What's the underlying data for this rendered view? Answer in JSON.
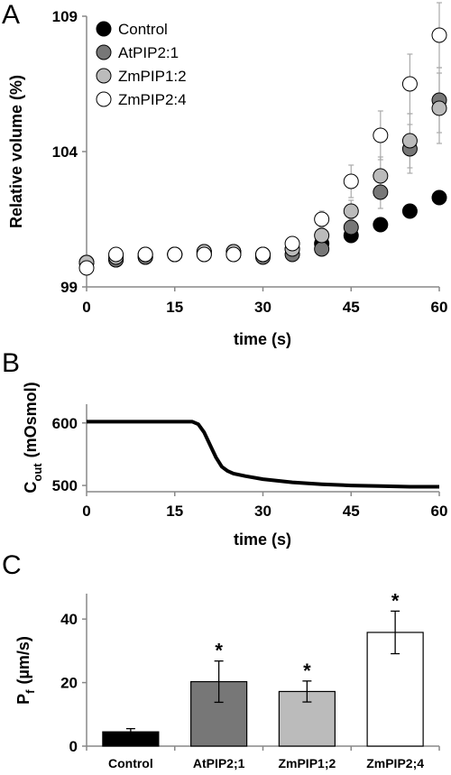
{
  "chart_data": [
    {
      "panel": "A",
      "type": "scatter",
      "xlabel": "time  (s)",
      "ylabel": "Relative volume (%)",
      "xlim": [
        0,
        60
      ],
      "ylim": [
        99,
        109
      ],
      "xticks": [
        0,
        15,
        30,
        45,
        60
      ],
      "yticks": [
        99,
        104,
        109
      ],
      "legend_position": "top-left",
      "series": [
        {
          "name": "Control",
          "color": "#000000",
          "x": [
            0,
            5,
            10,
            15,
            20,
            25,
            30,
            35,
            40,
            45,
            50,
            55,
            60
          ],
          "y": [
            99.9,
            100.0,
            100.1,
            100.2,
            100.3,
            100.3,
            100.2,
            100.4,
            100.6,
            100.9,
            101.3,
            101.8,
            102.3
          ],
          "err": [
            0,
            0,
            0,
            0,
            0,
            0,
            0,
            0,
            0,
            0,
            0.1,
            0.15,
            0.2
          ]
        },
        {
          "name": "AtPIP2:1",
          "color": "#777777",
          "x": [
            0,
            5,
            10,
            15,
            20,
            25,
            30,
            35,
            40,
            45,
            50,
            55,
            60
          ],
          "y": [
            99.9,
            100.0,
            100.1,
            100.2,
            100.2,
            100.2,
            100.1,
            100.2,
            100.4,
            101.2,
            102.5,
            104.1,
            105.9
          ],
          "err": [
            0,
            0,
            0,
            0,
            0,
            0,
            0,
            0,
            0.1,
            0.3,
            0.6,
            0.9,
            1.2
          ]
        },
        {
          "name": "ZmPIP1:2",
          "color": "#bbbbbb",
          "x": [
            0,
            5,
            10,
            15,
            20,
            25,
            30,
            35,
            40,
            45,
            50,
            55,
            60
          ],
          "y": [
            99.9,
            100.1,
            100.2,
            100.2,
            100.3,
            100.3,
            100.2,
            100.4,
            100.9,
            101.8,
            103.1,
            104.4,
            105.6
          ],
          "err": [
            0,
            0,
            0,
            0,
            0,
            0,
            0,
            0,
            0.2,
            0.4,
            0.7,
            1.0,
            1.3
          ]
        },
        {
          "name": "ZmPIP2:4",
          "color": "#ffffff",
          "x": [
            0,
            5,
            10,
            15,
            20,
            25,
            30,
            35,
            40,
            45,
            50,
            55,
            60
          ],
          "y": [
            99.7,
            100.2,
            100.2,
            100.2,
            100.2,
            100.2,
            100.2,
            100.6,
            101.5,
            102.9,
            104.6,
            106.5,
            108.3
          ],
          "err": [
            0,
            0,
            0,
            0,
            0,
            0,
            0,
            0.1,
            0.3,
            0.6,
            0.9,
            1.1,
            1.2
          ]
        }
      ]
    },
    {
      "panel": "B",
      "type": "line",
      "xlabel": "time  (s)",
      "ylabel": "C",
      "ylabel_subscript": "out",
      "ylabel_unit": "(mOsmol)",
      "xlim": [
        0,
        60
      ],
      "ylim": [
        490,
        630
      ],
      "xticks": [
        0,
        15,
        30,
        45,
        60
      ],
      "yticks": [
        500,
        600
      ],
      "series": [
        {
          "name": "",
          "x": [
            0,
            5,
            10,
            15,
            18,
            19,
            20,
            21,
            22,
            23,
            24,
            25,
            27,
            30,
            35,
            40,
            45,
            50,
            55,
            60
          ],
          "y": [
            602,
            602,
            602,
            602,
            602,
            598,
            585,
            565,
            545,
            530,
            523,
            519,
            515,
            510,
            505,
            502,
            500,
            499,
            498,
            498
          ]
        }
      ]
    },
    {
      "panel": "C",
      "type": "bar",
      "ylabel": "P",
      "ylabel_subscript": "f",
      "ylabel_unit": "(µm/s)",
      "ylim": [
        0,
        48
      ],
      "yticks": [
        0,
        20,
        40
      ],
      "categories": [
        "Control",
        "AtPIP2;1",
        "ZmPIP1;2",
        "ZmPIP2;4"
      ],
      "values": [
        4.5,
        20.3,
        17.2,
        35.8
      ],
      "errors": [
        1.0,
        6.5,
        3.3,
        6.7
      ],
      "colors": [
        "#000000",
        "#777777",
        "#bbbbbb",
        "#ffffff"
      ],
      "annotations": [
        "",
        "*",
        "*",
        "*"
      ]
    }
  ]
}
